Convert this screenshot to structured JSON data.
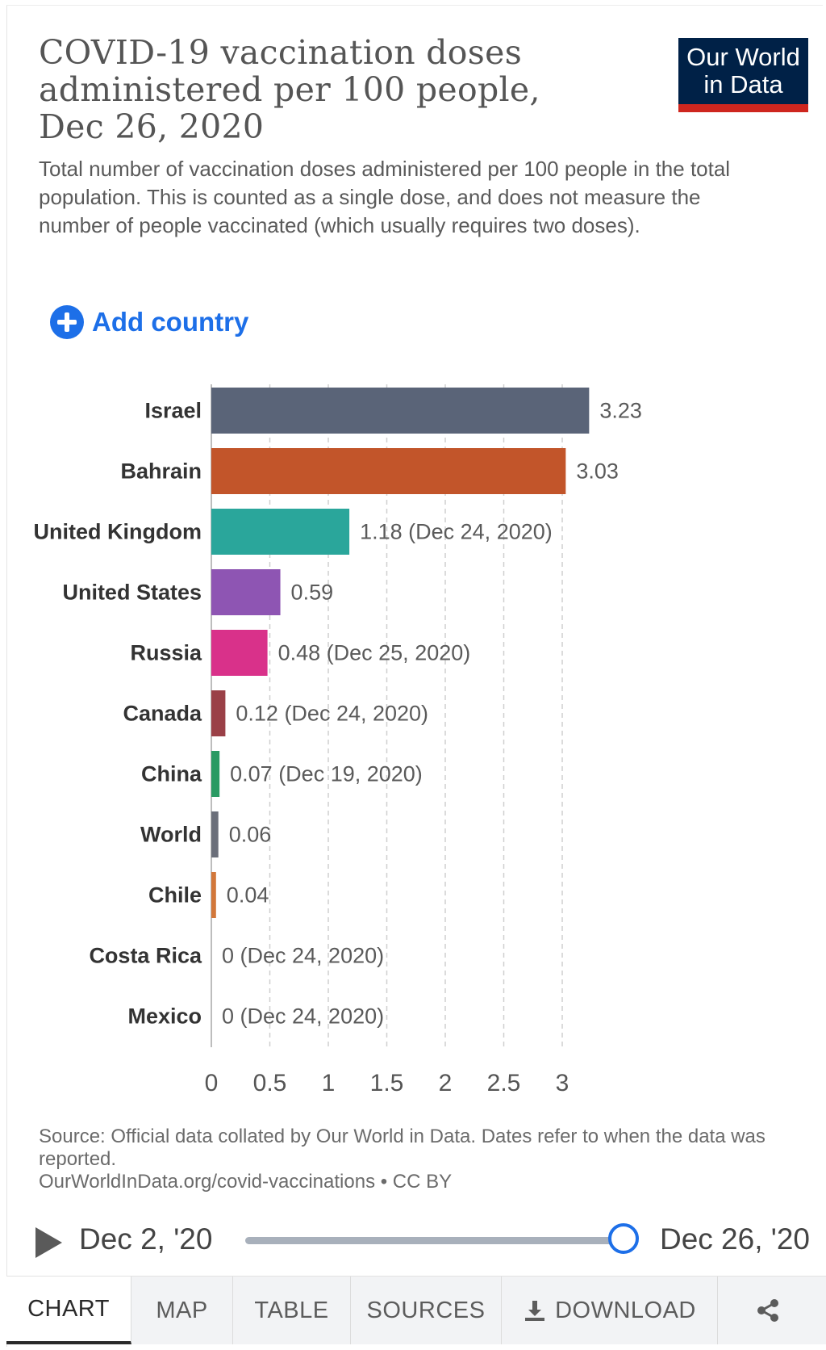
{
  "header": {
    "title": "COVID-19 vaccination doses administered per 100 people, Dec 26, 2020",
    "subtitle": "Total number of vaccination doses administered per 100 people in the total population. This is counted as a single dose, and does not measure the number of people vaccinated (which usually requires two doses).",
    "logo_line1": "Our World",
    "logo_line2": "in Data",
    "logo_bg": "#002147",
    "logo_accent": "#ce261e"
  },
  "add_country": {
    "label": "Add country",
    "icon": "plus-circle-icon",
    "color": "#1d6fe8"
  },
  "chart_data": {
    "type": "bar",
    "orientation": "horizontal",
    "title": "",
    "xlabel": "",
    "ylabel": "",
    "xlim": [
      0,
      3.23
    ],
    "xticks": [
      0,
      0.5,
      1,
      1.5,
      2,
      2.5,
      3
    ],
    "xtick_labels": [
      "0",
      "0.5",
      "1",
      "1.5",
      "2",
      "2.5",
      "3"
    ],
    "grid": "vertical dashed",
    "categories": [
      "Israel",
      "Bahrain",
      "United Kingdom",
      "United States",
      "Russia",
      "Canada",
      "China",
      "World",
      "Chile",
      "Costa Rica",
      "Mexico"
    ],
    "values": [
      3.23,
      3.03,
      1.18,
      0.59,
      0.48,
      0.12,
      0.07,
      0.06,
      0.04,
      0,
      0
    ],
    "value_labels": [
      "3.23",
      "3.03",
      "1.18 (Dec 24, 2020)",
      "0.59",
      "0.48 (Dec 25, 2020)",
      "0.12 (Dec 24, 2020)",
      "0.07 (Dec 19, 2020)",
      "0.06",
      "0.04",
      "0 (Dec 24, 2020)",
      "0 (Dec 24, 2020)"
    ],
    "colors": [
      "#5a6478",
      "#c2552a",
      "#2aa69b",
      "#8e55b3",
      "#d9318a",
      "#9a4047",
      "#2a9a63",
      "#6b6f7a",
      "#d2773a",
      "#c7c7c7",
      "#c7c7c7"
    ]
  },
  "source": {
    "line1": "Source: Official data collated by Our World in Data. Dates refer to when the data was reported.",
    "line2": "OurWorldInData.org/covid-vaccinations • CC BY"
  },
  "timeline": {
    "start_label": "Dec 2, '20",
    "end_label": "Dec 26, '20",
    "position": 1.0,
    "play_icon": "play-icon"
  },
  "tabs": [
    {
      "label": "CHART",
      "active": true
    },
    {
      "label": "MAP",
      "active": false
    },
    {
      "label": "TABLE",
      "active": false
    },
    {
      "label": "SOURCES",
      "active": false
    },
    {
      "label": "DOWNLOAD",
      "active": false,
      "icon": "download-icon"
    }
  ],
  "share_icon": "share-icon"
}
